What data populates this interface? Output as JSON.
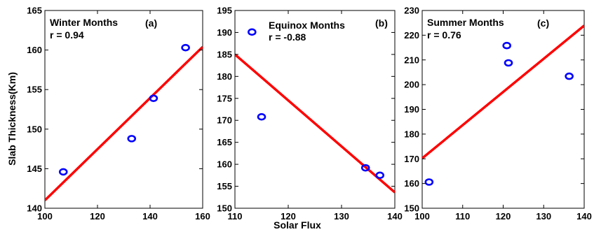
{
  "figure": {
    "ylabel": "Slab Thickness(Km)",
    "xlabel": "Solar Flux"
  },
  "chart_data": [
    {
      "type": "scatter",
      "title": "Winter Months",
      "panel_label": "(a)",
      "annotation": "r = 0.94",
      "xlim": [
        100,
        160
      ],
      "ylim": [
        140,
        165
      ],
      "xticks": [
        100,
        120,
        140,
        160
      ],
      "yticks": [
        140,
        145,
        150,
        155,
        160,
        165
      ],
      "points": [
        {
          "x": 107,
          "y": 144.6
        },
        {
          "x": 133,
          "y": 148.8
        },
        {
          "x": 141.3,
          "y": 153.9
        },
        {
          "x": 153.5,
          "y": 160.3
        }
      ],
      "fit_line": {
        "x": [
          100,
          160
        ],
        "y": [
          141.0,
          160.4
        ]
      },
      "colors": {
        "points": "#0000ff",
        "line": "#ff0000"
      },
      "grid": false
    },
    {
      "type": "scatter",
      "title": "Equinox Months",
      "panel_label": "(b)",
      "annotation": "r = -0.88",
      "xlim": [
        110,
        140
      ],
      "ylim": [
        150,
        195
      ],
      "xticks": [
        110,
        120,
        130,
        140
      ],
      "yticks": [
        150,
        155,
        160,
        165,
        170,
        175,
        180,
        185,
        190,
        195
      ],
      "points": [
        {
          "x": 113.2,
          "y": 190.1
        },
        {
          "x": 115,
          "y": 170.8
        },
        {
          "x": 134.5,
          "y": 159.2
        },
        {
          "x": 137.2,
          "y": 157.5
        }
      ],
      "fit_line": {
        "x": [
          110,
          140
        ],
        "y": [
          185.0,
          153.6
        ]
      },
      "colors": {
        "points": "#0000ff",
        "line": "#ff0000"
      },
      "grid": false
    },
    {
      "type": "scatter",
      "title": "Summer Months",
      "panel_label": "(c)",
      "annotation": "r = 0.76",
      "xlim": [
        100,
        140
      ],
      "ylim": [
        150,
        230
      ],
      "xticks": [
        100,
        110,
        120,
        130,
        140
      ],
      "yticks": [
        150,
        160,
        170,
        180,
        190,
        200,
        210,
        220,
        230
      ],
      "points": [
        {
          "x": 101.7,
          "y": 160.6
        },
        {
          "x": 120.9,
          "y": 215.8
        },
        {
          "x": 121.3,
          "y": 208.8
        },
        {
          "x": 136.3,
          "y": 203.4
        }
      ],
      "fit_line": {
        "x": [
          100,
          140
        ],
        "y": [
          170.2,
          223.9
        ]
      },
      "colors": {
        "points": "#0000ff",
        "line": "#ff0000"
      },
      "grid": false
    }
  ]
}
